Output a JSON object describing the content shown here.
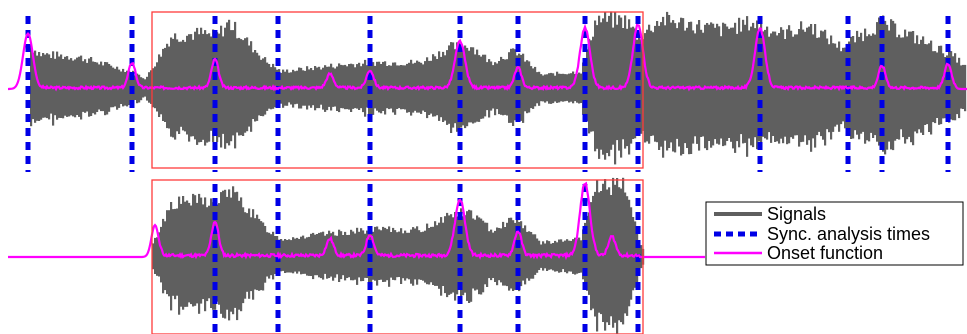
{
  "colors": {
    "signal": "#5f5f5f",
    "sync": "#0000e6",
    "onset": "#ff00ff",
    "box": "#ff3b3b",
    "background": "#ffffff",
    "legend_border": "#000000"
  },
  "legend": {
    "signals": "Signals",
    "sync_times": "Sync. analysis times",
    "onset_function": "Onset function"
  },
  "chart_data": [
    {
      "type": "line",
      "panel": "top",
      "series": [
        {
          "name": "Signals"
        },
        {
          "name": "Sync. analysis times"
        },
        {
          "name": "Onset function"
        }
      ],
      "sync_times": [
        28,
        132,
        215,
        278,
        370,
        460,
        518,
        585,
        638,
        760,
        848,
        882,
        948
      ],
      "onset_peaks": [
        [
          28,
          0.88
        ],
        [
          132,
          0.4
        ],
        [
          215,
          0.45
        ],
        [
          330,
          0.22
        ],
        [
          370,
          0.28
        ],
        [
          460,
          0.74
        ],
        [
          518,
          0.32
        ],
        [
          585,
          0.95
        ],
        [
          638,
          1.0
        ],
        [
          760,
          0.95
        ],
        [
          882,
          0.35
        ],
        [
          948,
          0.38
        ]
      ],
      "signal_envelope": [
        [
          30,
          0.6
        ],
        [
          40,
          0.5
        ],
        [
          80,
          0.45
        ],
        [
          130,
          0.25
        ],
        [
          145,
          0.15
        ],
        [
          170,
          0.75
        ],
        [
          200,
          0.8
        ],
        [
          215,
          0.75
        ],
        [
          228,
          0.95
        ],
        [
          265,
          0.4
        ],
        [
          280,
          0.25
        ],
        [
          330,
          0.33
        ],
        [
          370,
          0.38
        ],
        [
          420,
          0.38
        ],
        [
          450,
          0.6
        ],
        [
          470,
          0.62
        ],
        [
          490,
          0.38
        ],
        [
          515,
          0.55
        ],
        [
          540,
          0.2
        ],
        [
          580,
          0.25
        ],
        [
          595,
          1.0
        ],
        [
          625,
          0.98
        ],
        [
          638,
          0.75
        ],
        [
          660,
          1.0
        ],
        [
          720,
          0.85
        ],
        [
          750,
          0.95
        ],
        [
          780,
          0.8
        ],
        [
          810,
          0.9
        ],
        [
          840,
          0.6
        ],
        [
          880,
          0.95
        ],
        [
          920,
          0.7
        ],
        [
          955,
          0.45
        ],
        [
          965,
          0.3
        ]
      ],
      "highlight_range": [
        152,
        643
      ]
    },
    {
      "type": "line",
      "panel": "bottom",
      "sync_times": [
        215,
        278,
        370,
        460,
        518,
        585,
        638
      ],
      "onset_peaks": [
        [
          155,
          0.42
        ],
        [
          215,
          0.45
        ],
        [
          330,
          0.22
        ],
        [
          370,
          0.28
        ],
        [
          460,
          0.74
        ],
        [
          518,
          0.32
        ],
        [
          585,
          0.95
        ],
        [
          612,
          0.25
        ]
      ],
      "signal_envelope": [
        [
          152,
          0.18
        ],
        [
          170,
          0.75
        ],
        [
          200,
          0.8
        ],
        [
          215,
          0.75
        ],
        [
          228,
          0.95
        ],
        [
          265,
          0.4
        ],
        [
          280,
          0.25
        ],
        [
          330,
          0.33
        ],
        [
          370,
          0.38
        ],
        [
          420,
          0.38
        ],
        [
          450,
          0.6
        ],
        [
          470,
          0.62
        ],
        [
          490,
          0.38
        ],
        [
          515,
          0.55
        ],
        [
          540,
          0.2
        ],
        [
          580,
          0.25
        ],
        [
          595,
          1.0
        ],
        [
          625,
          0.98
        ],
        [
          638,
          0.25
        ],
        [
          643,
          0.1
        ]
      ],
      "highlight_range": [
        152,
        643
      ]
    }
  ]
}
